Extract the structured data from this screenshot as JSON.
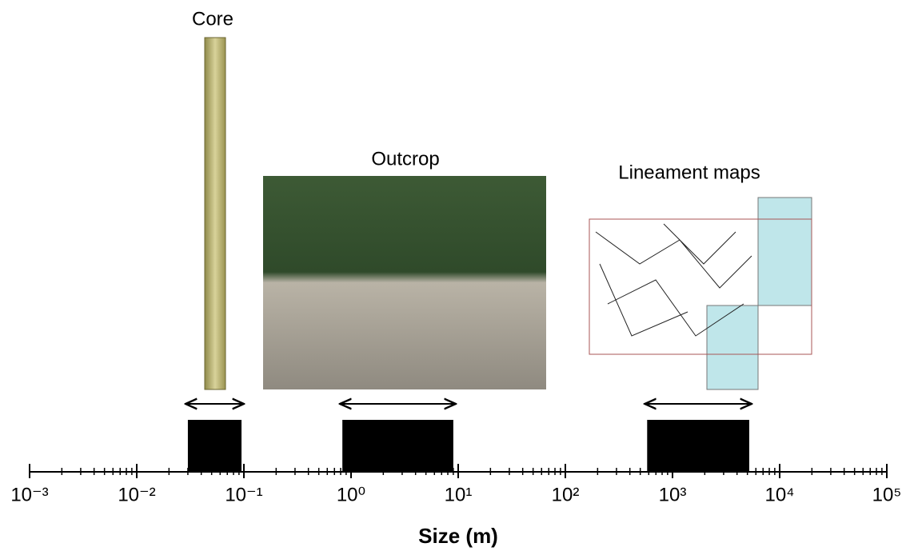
{
  "chart_data": {
    "type": "range_bar",
    "x_label": "Size (m)",
    "log_x": true,
    "color": "#000000",
    "xlim": [
      0.001,
      100000
    ],
    "xticks": [
      {
        "value": 0.001,
        "label": "10⁻³"
      },
      {
        "value": 0.01,
        "label": "10⁻²"
      },
      {
        "value": 0.1,
        "label": "10⁻¹"
      },
      {
        "value": 1,
        "label": "10⁰"
      },
      {
        "value": 10,
        "label": "10¹"
      },
      {
        "value": 100,
        "label": "10²"
      },
      {
        "value": 1000,
        "label": "10³"
      },
      {
        "value": 10000,
        "label": "10⁴"
      },
      {
        "value": 100000,
        "label": "10⁵"
      }
    ],
    "minor_xticks": [
      0.002,
      0.003,
      0.004,
      0.005,
      0.006,
      0.007,
      0.008,
      0.009,
      0.02,
      0.03,
      0.04,
      0.05,
      0.06,
      0.07,
      0.08,
      0.09,
      0.2,
      0.3,
      0.4,
      0.5,
      0.6,
      0.7,
      0.8,
      0.9,
      2,
      3,
      4,
      5,
      6,
      7,
      8,
      9,
      20,
      30,
      40,
      50,
      60,
      70,
      80,
      90,
      200,
      300,
      400,
      500,
      600,
      700,
      800,
      900,
      2000,
      3000,
      4000,
      5000,
      6000,
      7000,
      8000,
      9000,
      20000,
      30000,
      40000,
      50000,
      60000,
      70000,
      80000,
      90000
    ],
    "ranges": [
      {
        "name": "Core",
        "low": 0.03,
        "high": 0.095
      },
      {
        "name": "Outcrop",
        "low": 0.83,
        "high": 9
      },
      {
        "name": "Lineament maps",
        "low": 580,
        "high": 5200
      }
    ]
  }
}
